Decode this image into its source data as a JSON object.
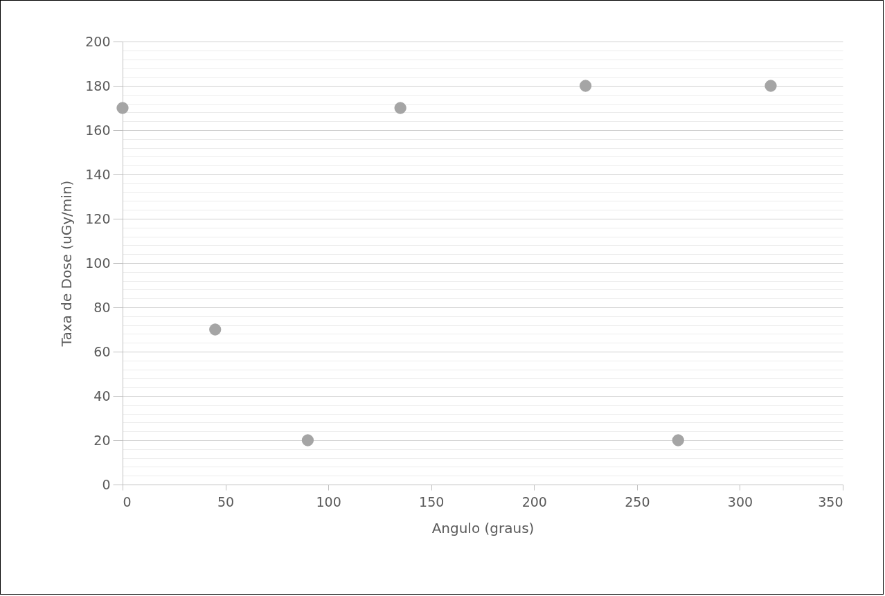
{
  "chart_data": {
    "type": "scatter",
    "xlabel": "Angulo (graus)",
    "ylabel": "Taxa de Dose (uGy/min)",
    "x": [
      0,
      45,
      90,
      135,
      225,
      270,
      315
    ],
    "series": [
      {
        "color": "#a5a5a5",
        "values": [
          170,
          70,
          20,
          170,
          180,
          20,
          180
        ]
      }
    ],
    "xlim": [
      0,
      350
    ],
    "xticks": [
      0,
      50,
      100,
      150,
      200,
      250,
      300,
      350
    ],
    "ylim": [
      0,
      200
    ],
    "yticks": [
      0,
      {
        "value": 4,
        "label": null
      },
      {
        "value": 8,
        "label": null
      },
      {
        "value": 12,
        "label": null
      },
      {
        "value": 16,
        "label": null
      },
      20,
      {
        "value": 24,
        "label": null
      },
      {
        "value": 28,
        "label": null
      },
      {
        "value": 32,
        "label": null
      },
      {
        "value": 36,
        "label": null
      },
      40,
      {
        "value": 44,
        "label": null
      },
      {
        "value": 48,
        "label": null
      },
      {
        "value": 52,
        "label": null
      },
      {
        "value": 56,
        "label": null
      },
      60,
      {
        "value": 64,
        "label": null
      },
      {
        "value": 68,
        "label": null
      },
      {
        "value": 72,
        "label": null
      },
      {
        "value": 76,
        "label": null
      },
      80,
      {
        "value": 84,
        "label": null
      },
      {
        "value": 88,
        "label": null
      },
      {
        "value": 92,
        "label": null
      },
      {
        "value": 96,
        "label": null
      },
      100,
      {
        "value": 104,
        "label": null
      },
      {
        "value": 108,
        "label": null
      },
      {
        "value": 112,
        "label": null
      },
      {
        "value": 116,
        "label": null
      },
      120,
      {
        "value": 124,
        "label": null
      },
      {
        "value": 128,
        "label": null
      },
      {
        "value": 132,
        "label": null
      },
      {
        "value": 136,
        "label": null
      },
      140,
      {
        "value": 144,
        "label": null
      },
      {
        "value": 148,
        "label": null
      },
      {
        "value": 152,
        "label": null
      },
      {
        "value": 156,
        "label": null
      },
      160,
      {
        "value": 164,
        "label": null
      },
      {
        "value": 168,
        "label": null
      },
      {
        "value": 172,
        "label": null
      },
      {
        "value": 176,
        "label": null
      },
      180,
      {
        "value": 184,
        "label": null
      },
      {
        "value": 188,
        "label": null
      },
      {
        "value": 192,
        "label": null
      },
      {
        "value": 196,
        "label": null
      },
      200
    ],
    "grid": "y",
    "marker": "circle"
  }
}
